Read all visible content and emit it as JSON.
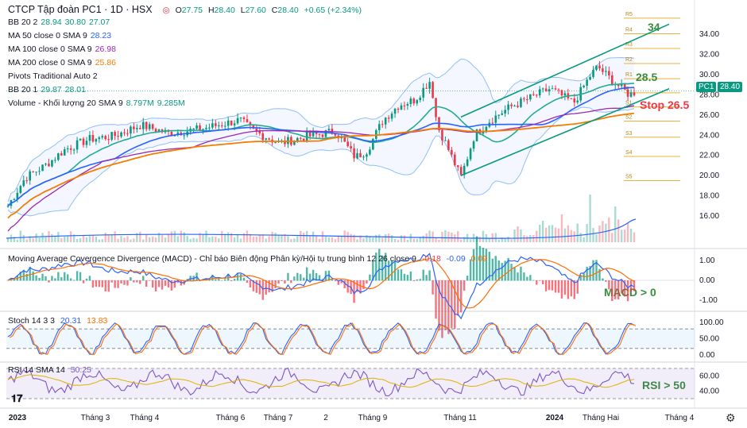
{
  "header": {
    "title": "CTCP Tập đoàn PC1 · 1D · HSX",
    "ohlc": {
      "o_label": "O",
      "o": "27.75",
      "h_label": "H",
      "h": "28.40",
      "l_label": "L",
      "l": "27.60",
      "c_label": "C",
      "c": "28.40",
      "chg": "+0.65 (+2.34%)"
    }
  },
  "legends": [
    {
      "label": "BB 20 2",
      "values": [
        "28.94",
        "30.80",
        "27.07"
      ],
      "color": "#089981"
    },
    {
      "label": "MA 50 close 0 SMA 9",
      "values": [
        "28.23"
      ],
      "color": "#2962ff"
    },
    {
      "label": "MA 100 close 0 SMA 9",
      "values": [
        "26.98"
      ],
      "color": "#9c27b0"
    },
    {
      "label": "MA 200 close 0 SMA 9",
      "values": [
        "25.86"
      ],
      "color": "#f57c00"
    },
    {
      "label": "Pivots Traditional Auto 2",
      "values": [],
      "color": "#131722"
    },
    {
      "label": "BB 20 1",
      "values": [
        "29.87",
        "28.01"
      ],
      "color": "#089981"
    },
    {
      "label": "Volume - Khối lượng 20 SMA 9",
      "values": [
        "8.797M",
        "9.285M"
      ],
      "color": "#089981"
    }
  ],
  "macd_legend": {
    "label": "Moving Average Covergence Divergence (MACD) - Chỉ báo Biên động Phân kỳ/Hội tụ trung bình 12 26 close 9",
    "values": [
      "-0.18",
      "-0.09",
      "0.09"
    ]
  },
  "stoch_legend": {
    "label": "Stoch 14 3 3",
    "values": [
      "20.31",
      "13.83"
    ]
  },
  "rsi_legend": {
    "label": "RSI 14 SMA 14",
    "values": [
      "50.25"
    ]
  },
  "last_price": {
    "symbol": "PC1",
    "value": "28.40"
  },
  "annotations": {
    "target": "34",
    "target2": "28.5",
    "stop": "Stop 26.5",
    "macd": "MACD > 0",
    "rsi": "RSI > 50"
  },
  "pivots": {
    "labels": [
      "R5",
      "R4",
      "R3",
      "R2",
      "R1",
      "P",
      "S1",
      "S2",
      "S3",
      "S4",
      "S5"
    ],
    "values": [
      35.6,
      34.05,
      32.6,
      31.1,
      29.6,
      28.2,
      26.8,
      25.4,
      23.8,
      21.9,
      19.5
    ]
  },
  "price_axis": {
    "ticks": [
      "34.00",
      "32.00",
      "30.00",
      "28.00",
      "26.00",
      "24.00",
      "22.00",
      "20.00",
      "18.00",
      "16.00"
    ],
    "values": [
      34,
      32,
      30,
      28,
      26,
      24,
      22,
      20,
      18,
      16
    ]
  },
  "macd_axis": {
    "ticks": [
      "1.00",
      "0.00",
      "-1.00"
    ],
    "values": [
      1,
      0,
      -1
    ]
  },
  "stoch_axis": {
    "ticks": [
      "100.00",
      "50.00",
      "0.00"
    ],
    "values": [
      100,
      50,
      0
    ]
  },
  "rsi_axis": {
    "ticks": [
      "60.00",
      "40.00"
    ],
    "values": [
      60,
      40
    ]
  },
  "time_axis": {
    "labels": [
      "2023",
      "Tháng 3",
      "Tháng 4",
      "Tháng 6",
      "Tháng 7",
      "2",
      "Tháng 9",
      "Tháng 11",
      "2024",
      "Tháng Hai",
      "Tháng 4"
    ],
    "bold": [
      true,
      false,
      false,
      false,
      false,
      false,
      false,
      false,
      true,
      false,
      false
    ]
  },
  "colors": {
    "up": "#089981",
    "down": "#f23645",
    "bb": "#089981",
    "ma50": "#2962ff",
    "ma100": "#9c27b0",
    "ma200": "#f57c00",
    "pivot": "#e8b13a",
    "macd": "#2962ff",
    "signal": "#ff6d00",
    "stoch_k": "#2962ff",
    "stoch_d": "#ff6d00",
    "rsi": "#7e57c2",
    "channel": "#089981",
    "annotation": "#388e3c",
    "stop": "#f23645"
  },
  "chart_data": {
    "type": "candlestick",
    "series": [
      {
        "name": "Price",
        "x": [
          "2023-01",
          "2023-02",
          "2023-03",
          "2023-04",
          "2023-05",
          "2023-06",
          "2023-07",
          "2023-08",
          "2023-09",
          "2023-10",
          "2023-11",
          "2023-12",
          "2024-01",
          "2024-02",
          "2024-03"
        ],
        "values": [
          17.0,
          21.5,
          23.2,
          24.0,
          24.8,
          24.6,
          23.4,
          23.8,
          22.0,
          27.2,
          22.0,
          26.8,
          28.5,
          30.0,
          28.4
        ]
      }
    ],
    "channel": {
      "lower": [
        [
          2023.82,
          20.0
        ],
        [
          2024.2,
          28.6
        ]
      ],
      "upper": [
        [
          2023.82,
          25.8
        ],
        [
          2024.2,
          35.0
        ]
      ]
    },
    "ylim": [
      15,
      36.5
    ]
  }
}
